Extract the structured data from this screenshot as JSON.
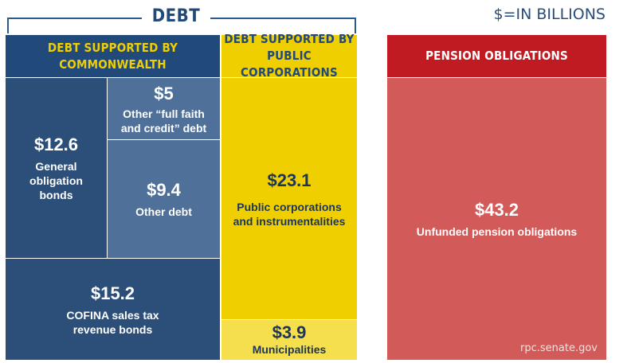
{
  "chart_data": {
    "type": "treemap",
    "title": "",
    "units_note": "$=IN BILLIONS",
    "group_label": "DEBT",
    "source": "rpc.senate.gov",
    "groups": [
      {
        "name": "DEBT SUPPORTED BY\nCOMMONWEALTH",
        "items": [
          {
            "value_label": "$12.6",
            "value": 12.6,
            "label": "General\nobligation\nbonds"
          },
          {
            "value_label": "$5",
            "value": 5,
            "label": "Other “full faith\nand credit” debt"
          },
          {
            "value_label": "$9.4",
            "value": 9.4,
            "label": "Other debt"
          },
          {
            "value_label": "$15.2",
            "value": 15.2,
            "label": "COFINA sales tax\nrevenue bonds"
          }
        ]
      },
      {
        "name": "DEBT SUPPORTED BY\nPUBLIC CORPORATIONS",
        "items": [
          {
            "value_label": "$23.1",
            "value": 23.1,
            "label": "Public corporations\nand instrumentalities"
          },
          {
            "value_label": "$3.9",
            "value": 3.9,
            "label": "Municipalities"
          }
        ]
      },
      {
        "name": "PENSION OBLIGATIONS",
        "items": [
          {
            "value_label": "$43.2",
            "value": 43.2,
            "label": "Unfunded pension obligations"
          }
        ]
      }
    ]
  },
  "colors": {
    "navy_dark": "#21497a",
    "navy": "#2c4f7a",
    "steel": "#4f7098",
    "yellow": "#f0cf00",
    "yellow_light": "#f6df4c",
    "red_dark": "#c01b22",
    "red": "#d25b59"
  }
}
